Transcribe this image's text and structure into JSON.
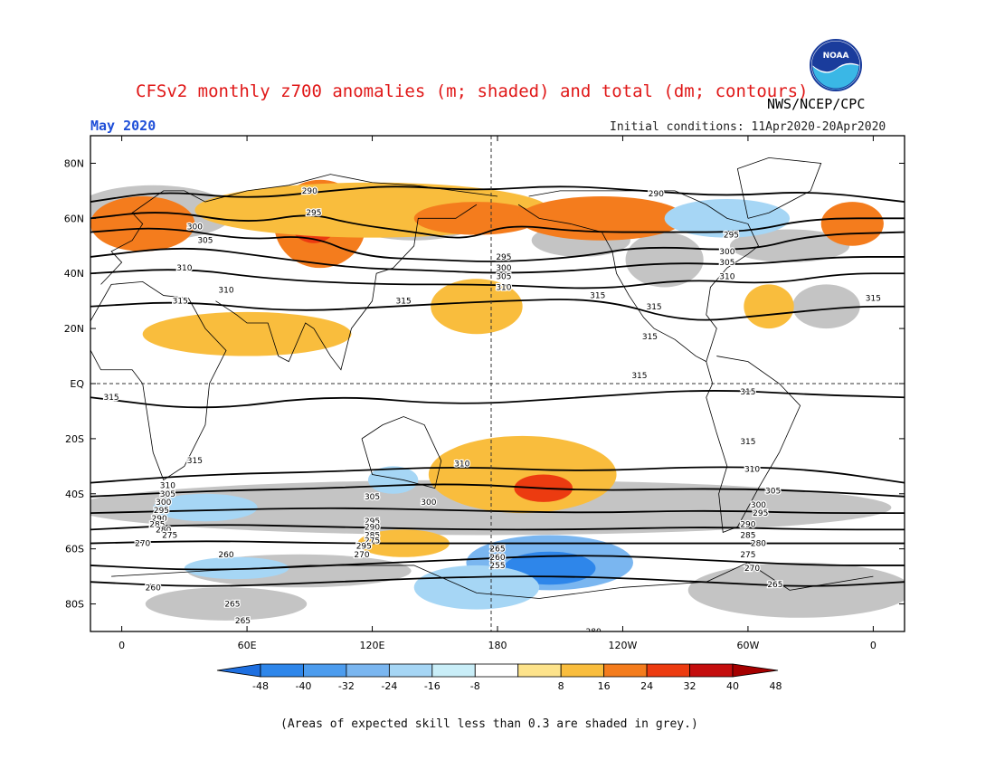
{
  "title": "CFSv2 monthly z700 anomalies (m; shaded) and total (dm; contours)",
  "agency": "NWS/NCEP/CPC",
  "logo_text": "NOAA",
  "month": "May 2020",
  "initial_conditions": "Initial conditions: 11Apr2020-20Apr2020",
  "footnote": "(Areas of expected skill less than 0.3 are shaded in grey.)",
  "axes": {
    "lat_labels": [
      "80N",
      "60N",
      "40N",
      "20N",
      "EQ",
      "20S",
      "40S",
      "60S",
      "80S"
    ],
    "lat_values": [
      80,
      60,
      40,
      20,
      0,
      -20,
      -40,
      -60,
      -80
    ],
    "lon_labels": [
      "0",
      "60E",
      "120E",
      "180",
      "120W",
      "60W",
      "0"
    ],
    "lon_values": [
      0,
      60,
      120,
      180,
      240,
      300,
      360
    ],
    "lon_range": [
      -15,
      375
    ],
    "lat_range": [
      -90,
      90
    ]
  },
  "colorbar": {
    "labels": [
      "-48",
      "-40",
      "-32",
      "-24",
      "-16",
      "-8",
      "8",
      "16",
      "24",
      "32",
      "40",
      "48"
    ],
    "colors": [
      "#1e6fe0",
      "#2e86ea",
      "#4c9cee",
      "#7ab6f0",
      "#a6d6f5",
      "#c9eef8",
      "#ffffff",
      "#fde38b",
      "#f9bd3d",
      "#f47c1d",
      "#ec3b10",
      "#c40d0d",
      "#a50000"
    ]
  },
  "colors": {
    "skill_grey": "#c4c4c4",
    "land_outline": "#000000",
    "contour": "#000000"
  },
  "anomaly_regions": [
    {
      "lon": 95,
      "lat": 58,
      "rx": 22,
      "ry": 16,
      "level": "24"
    },
    {
      "lon": 92,
      "lat": 60,
      "rx": 12,
      "ry": 9,
      "level": "32"
    },
    {
      "lon": 120,
      "lat": 63,
      "rx": 85,
      "ry": 10,
      "level": "16"
    },
    {
      "lon": 170,
      "lat": 60,
      "rx": 30,
      "ry": 6,
      "level": "24"
    },
    {
      "lon": 230,
      "lat": 60,
      "rx": 40,
      "ry": 8,
      "level": "24"
    },
    {
      "lon": 10,
      "lat": 58,
      "rx": 25,
      "ry": 10,
      "level": "24"
    },
    {
      "lon": 350,
      "lat": 58,
      "rx": 15,
      "ry": 8,
      "level": "24"
    },
    {
      "lon": 290,
      "lat": 60,
      "rx": 30,
      "ry": 7,
      "level": "-16"
    },
    {
      "lon": 310,
      "lat": 28,
      "rx": 12,
      "ry": 8,
      "level": "16"
    },
    {
      "lon": 170,
      "lat": 28,
      "rx": 22,
      "ry": 10,
      "level": "16"
    },
    {
      "lon": 60,
      "lat": 18,
      "rx": 50,
      "ry": 8,
      "level": "16"
    },
    {
      "lon": 192,
      "lat": -33,
      "rx": 45,
      "ry": 14,
      "level": "16"
    },
    {
      "lon": 202,
      "lat": -38,
      "rx": 14,
      "ry": 5,
      "level": "32"
    },
    {
      "lon": 135,
      "lat": -58,
      "rx": 22,
      "ry": 5,
      "level": "16"
    },
    {
      "lon": 205,
      "lat": -65,
      "rx": 40,
      "ry": 10,
      "level": "-24"
    },
    {
      "lon": 205,
      "lat": -67,
      "rx": 22,
      "ry": 6,
      "level": "-40"
    },
    {
      "lon": 170,
      "lat": -74,
      "rx": 30,
      "ry": 8,
      "level": "-16"
    },
    {
      "lon": 40,
      "lat": -45,
      "rx": 25,
      "ry": 5,
      "level": "-16"
    },
    {
      "lon": 130,
      "lat": -35,
      "rx": 12,
      "ry": 5,
      "level": "-16"
    },
    {
      "lon": 55,
      "lat": -67,
      "rx": 25,
      "ry": 4,
      "level": "-16"
    }
  ],
  "contours": [
    {
      "label": "290",
      "points": [
        [
          -15,
          66
        ],
        [
          20,
          70
        ],
        [
          60,
          67
        ],
        [
          100,
          70
        ],
        [
          130,
          72
        ],
        [
          170,
          70
        ],
        [
          210,
          72
        ],
        [
          250,
          70
        ],
        [
          290,
          68
        ],
        [
          330,
          70
        ],
        [
          375,
          66
        ]
      ]
    },
    {
      "label": "295",
      "points": [
        [
          -15,
          60
        ],
        [
          20,
          63
        ],
        [
          60,
          58
        ],
        [
          90,
          62
        ],
        [
          110,
          58
        ],
        [
          140,
          55
        ],
        [
          165,
          52
        ],
        [
          185,
          58
        ],
        [
          220,
          55
        ],
        [
          260,
          55
        ],
        [
          300,
          55
        ],
        [
          330,
          60
        ],
        [
          375,
          60
        ]
      ]
    },
    {
      "label": "300",
      "points": [
        [
          -15,
          55
        ],
        [
          20,
          57
        ],
        [
          60,
          52
        ],
        [
          90,
          54
        ],
        [
          115,
          46
        ],
        [
          150,
          45
        ],
        [
          180,
          44
        ],
        [
          220,
          46
        ],
        [
          250,
          50
        ],
        [
          300,
          48
        ],
        [
          330,
          54
        ],
        [
          375,
          55
        ]
      ]
    },
    {
      "label": "305",
      "points": [
        [
          -15,
          46
        ],
        [
          30,
          50
        ],
        [
          70,
          46
        ],
        [
          110,
          42
        ],
        [
          150,
          41
        ],
        [
          180,
          40
        ],
        [
          220,
          41
        ],
        [
          260,
          44
        ],
        [
          300,
          43
        ],
        [
          340,
          46
        ],
        [
          375,
          46
        ]
      ]
    },
    {
      "label": "310",
      "points": [
        [
          -15,
          40
        ],
        [
          30,
          42
        ],
        [
          70,
          38
        ],
        [
          120,
          36
        ],
        [
          180,
          36
        ],
        [
          230,
          34
        ],
        [
          270,
          38
        ],
        [
          310,
          36
        ],
        [
          345,
          40
        ],
        [
          375,
          40
        ]
      ]
    },
    {
      "label": "315",
      "points": [
        [
          -15,
          28
        ],
        [
          30,
          30
        ],
        [
          80,
          26
        ],
        [
          130,
          28
        ],
        [
          180,
          30
        ],
        [
          230,
          31
        ],
        [
          270,
          22
        ],
        [
          310,
          25
        ],
        [
          350,
          28
        ],
        [
          375,
          28
        ]
      ]
    },
    {
      "label": "315",
      "points": [
        [
          -15,
          -5
        ],
        [
          40,
          -10
        ],
        [
          100,
          -4
        ],
        [
          160,
          -8
        ],
        [
          220,
          -5
        ],
        [
          280,
          -2
        ],
        [
          330,
          -4
        ],
        [
          375,
          -5
        ]
      ]
    },
    {
      "label": "310",
      "points": [
        [
          -15,
          -36
        ],
        [
          40,
          -33
        ],
        [
          100,
          -32
        ],
        [
          160,
          -30
        ],
        [
          220,
          -32
        ],
        [
          280,
          -30
        ],
        [
          330,
          -31
        ],
        [
          375,
          -36
        ]
      ]
    },
    {
      "label": "305",
      "points": [
        [
          -15,
          -41
        ],
        [
          40,
          -39
        ],
        [
          100,
          -38
        ],
        [
          160,
          -36
        ],
        [
          220,
          -39
        ],
        [
          280,
          -38
        ],
        [
          330,
          -39
        ],
        [
          375,
          -41
        ]
      ]
    },
    {
      "label": "295",
      "points": [
        [
          -15,
          -47
        ],
        [
          40,
          -46
        ],
        [
          100,
          -45
        ],
        [
          160,
          -46
        ],
        [
          220,
          -47
        ],
        [
          280,
          -46
        ],
        [
          330,
          -47
        ],
        [
          375,
          -47
        ]
      ]
    },
    {
      "label": "285",
      "points": [
        [
          -15,
          -53
        ],
        [
          40,
          -51
        ],
        [
          100,
          -52
        ],
        [
          160,
          -53
        ],
        [
          220,
          -53
        ],
        [
          280,
          -52
        ],
        [
          330,
          -53
        ],
        [
          375,
          -53
        ]
      ]
    },
    {
      "label": "275",
      "points": [
        [
          -15,
          -58
        ],
        [
          40,
          -57
        ],
        [
          100,
          -58
        ],
        [
          160,
          -58
        ],
        [
          220,
          -58
        ],
        [
          280,
          -58
        ],
        [
          330,
          -58
        ],
        [
          375,
          -58
        ]
      ]
    },
    {
      "label": "265",
      "points": [
        [
          -15,
          -66
        ],
        [
          40,
          -68
        ],
        [
          100,
          -66
        ],
        [
          160,
          -64
        ],
        [
          220,
          -62
        ],
        [
          280,
          -64
        ],
        [
          330,
          -66
        ],
        [
          375,
          -66
        ]
      ]
    },
    {
      "label": "260",
      "points": [
        [
          -15,
          -72
        ],
        [
          40,
          -74
        ],
        [
          100,
          -72
        ],
        [
          170,
          -70
        ],
        [
          220,
          -70
        ],
        [
          280,
          -72
        ],
        [
          330,
          -74
        ],
        [
          375,
          -72
        ]
      ]
    }
  ],
  "contour_labels": [
    {
      "text": "290",
      "lon": 90,
      "lat": 70
    },
    {
      "text": "295",
      "lon": 92,
      "lat": 62
    },
    {
      "text": "300",
      "lon": 35,
      "lat": 57
    },
    {
      "text": "305",
      "lon": 40,
      "lat": 52
    },
    {
      "text": "310",
      "lon": 30,
      "lat": 42
    },
    {
      "text": "315",
      "lon": 28,
      "lat": 30
    },
    {
      "text": "310",
      "lon": 50,
      "lat": 34
    },
    {
      "text": "315",
      "lon": 135,
      "lat": 30
    },
    {
      "text": "295",
      "lon": 183,
      "lat": 46
    },
    {
      "text": "300",
      "lon": 183,
      "lat": 42
    },
    {
      "text": "305",
      "lon": 183,
      "lat": 39
    },
    {
      "text": "310",
      "lon": 183,
      "lat": 35
    },
    {
      "text": "315",
      "lon": 228,
      "lat": 32
    },
    {
      "text": "290",
      "lon": 256,
      "lat": 69
    },
    {
      "text": "295",
      "lon": 292,
      "lat": 54
    },
    {
      "text": "300",
      "lon": 290,
      "lat": 48
    },
    {
      "text": "305",
      "lon": 290,
      "lat": 44
    },
    {
      "text": "310",
      "lon": 290,
      "lat": 39
    },
    {
      "text": "315",
      "lon": 255,
      "lat": 28
    },
    {
      "text": "315",
      "lon": 253,
      "lat": 17
    },
    {
      "text": "315",
      "lon": 360,
      "lat": 31
    },
    {
      "text": "315",
      "lon": 248,
      "lat": 3
    },
    {
      "text": "315",
      "lon": 300,
      "lat": -3
    },
    {
      "text": "315",
      "lon": -5,
      "lat": -5
    },
    {
      "text": "315",
      "lon": 300,
      "lat": -21
    },
    {
      "text": "315",
      "lon": 35,
      "lat": -28
    },
    {
      "text": "310",
      "lon": 163,
      "lat": -29
    },
    {
      "text": "310",
      "lon": 302,
      "lat": -31
    },
    {
      "text": "310",
      "lon": 22,
      "lat": -37
    },
    {
      "text": "305",
      "lon": 22,
      "lat": -40
    },
    {
      "text": "300",
      "lon": 20,
      "lat": -43
    },
    {
      "text": "295",
      "lon": 19,
      "lat": -46
    },
    {
      "text": "290",
      "lon": 18,
      "lat": -49
    },
    {
      "text": "285",
      "lon": 17,
      "lat": -51
    },
    {
      "text": "280",
      "lon": 20,
      "lat": -53
    },
    {
      "text": "275",
      "lon": 23,
      "lat": -55
    },
    {
      "text": "270",
      "lon": 10,
      "lat": -58
    },
    {
      "text": "305",
      "lon": 120,
      "lat": -41
    },
    {
      "text": "300",
      "lon": 147,
      "lat": -43
    },
    {
      "text": "295",
      "lon": 120,
      "lat": -50
    },
    {
      "text": "290",
      "lon": 120,
      "lat": -52
    },
    {
      "text": "285",
      "lon": 120,
      "lat": -55
    },
    {
      "text": "275",
      "lon": 120,
      "lat": -57
    },
    {
      "text": "270",
      "lon": 115,
      "lat": -62
    },
    {
      "text": "295",
      "lon": 116,
      "lat": -59
    },
    {
      "text": "265",
      "lon": 180,
      "lat": -60
    },
    {
      "text": "260",
      "lon": 180,
      "lat": -63
    },
    {
      "text": "255",
      "lon": 180,
      "lat": -66
    },
    {
      "text": "260",
      "lon": 50,
      "lat": -62
    },
    {
      "text": "260",
      "lon": 15,
      "lat": -74
    },
    {
      "text": "265",
      "lon": 53,
      "lat": -80
    },
    {
      "text": "265",
      "lon": 58,
      "lat": -86
    },
    {
      "text": "300",
      "lon": 305,
      "lat": -44
    },
    {
      "text": "305",
      "lon": 312,
      "lat": -39
    },
    {
      "text": "295",
      "lon": 306,
      "lat": -47
    },
    {
      "text": "290",
      "lon": 300,
      "lat": -51
    },
    {
      "text": "285",
      "lon": 300,
      "lat": -55
    },
    {
      "text": "280",
      "lon": 305,
      "lat": -58
    },
    {
      "text": "275",
      "lon": 300,
      "lat": -62
    },
    {
      "text": "270",
      "lon": 302,
      "lat": -67
    },
    {
      "text": "265",
      "lon": 313,
      "lat": -73
    },
    {
      "text": "280",
      "lon": 226,
      "lat": -90
    }
  ]
}
